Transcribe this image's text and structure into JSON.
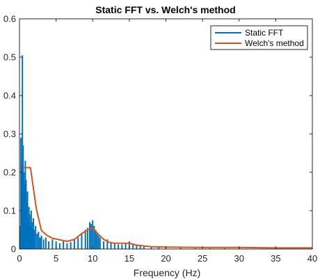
{
  "chart_data": {
    "type": "line",
    "title": "Static FFT vs. Welch's method",
    "xlabel": "Frequency (Hz)",
    "ylabel": "",
    "xlim": [
      0,
      40
    ],
    "ylim": [
      0,
      0.6
    ],
    "xticks": [
      0,
      5,
      10,
      15,
      20,
      25,
      30,
      35,
      40
    ],
    "yticks": [
      0,
      0.1,
      0.2,
      0.3,
      0.4,
      0.5,
      0.6
    ],
    "xtick_labels": [
      "0",
      "5",
      "10",
      "15",
      "20",
      "25",
      "30",
      "35",
      "40"
    ],
    "ytick_labels": [
      "0",
      "0.1",
      "0.2",
      "0.3",
      "0.4",
      "0.5",
      "0.6"
    ],
    "grid": false,
    "legend_position": "top-right",
    "series": [
      {
        "name": "Static FFT",
        "type": "stem",
        "color": "#0072BD",
        "x": [
          0.1,
          0.2,
          0.3,
          0.4,
          0.5,
          0.6,
          0.7,
          0.8,
          0.9,
          1.0,
          1.1,
          1.2,
          1.3,
          1.4,
          1.5,
          1.6,
          1.7,
          1.8,
          1.9,
          2.0,
          2.2,
          2.4,
          2.6,
          2.8,
          3.0,
          3.3,
          3.6,
          4.0,
          4.5,
          5.0,
          5.5,
          6.0,
          6.5,
          7.0,
          7.5,
          8.0,
          8.5,
          9.0,
          9.3,
          9.6,
          9.8,
          10.0,
          10.2,
          10.4,
          10.6,
          10.8,
          11.0,
          11.5,
          12.0,
          12.5,
          13.0,
          13.5,
          14.0,
          14.5,
          15.0,
          15.5,
          16.0,
          16.5,
          17.0,
          18.0,
          19.0,
          20.0,
          22.0,
          24.0,
          26.0,
          28.0,
          30.0,
          32.0,
          34.0,
          36.0,
          38.0,
          40.0
        ],
        "values": [
          0.06,
          0.29,
          0.22,
          0.505,
          0.27,
          0.2,
          0.17,
          0.23,
          0.18,
          0.12,
          0.15,
          0.08,
          0.11,
          0.09,
          0.06,
          0.1,
          0.07,
          0.05,
          0.08,
          0.05,
          0.06,
          0.04,
          0.045,
          0.03,
          0.035,
          0.025,
          0.03,
          0.02,
          0.025,
          0.02,
          0.015,
          0.02,
          0.015,
          0.018,
          0.025,
          0.03,
          0.04,
          0.05,
          0.055,
          0.07,
          0.065,
          0.075,
          0.06,
          0.05,
          0.04,
          0.035,
          0.03,
          0.02,
          0.025,
          0.015,
          0.015,
          0.012,
          0.012,
          0.015,
          0.02,
          0.012,
          0.01,
          0.008,
          0.006,
          0.005,
          0.004,
          0.003,
          0.003,
          0.002,
          0.002,
          0.002,
          0.002,
          0.001,
          0.001,
          0.001,
          0.001,
          0.001
        ]
      },
      {
        "name": "Welch's method",
        "type": "line",
        "color": "#D95319",
        "x": [
          0.5,
          1.5,
          2.3,
          3.0,
          3.8,
          4.5,
          5.5,
          6.5,
          7.5,
          8.5,
          9.3,
          10.0,
          10.8,
          11.5,
          12.3,
          13.0,
          14.0,
          15.0,
          16.0,
          17.0,
          18.0,
          20.0,
          25.0,
          30.0,
          35.0,
          40.0
        ],
        "values": [
          0.212,
          0.212,
          0.105,
          0.048,
          0.035,
          0.028,
          0.024,
          0.02,
          0.025,
          0.04,
          0.05,
          0.055,
          0.038,
          0.025,
          0.017,
          0.015,
          0.015,
          0.015,
          0.01,
          0.008,
          0.006,
          0.005,
          0.004,
          0.004,
          0.003,
          0.003
        ]
      }
    ]
  }
}
